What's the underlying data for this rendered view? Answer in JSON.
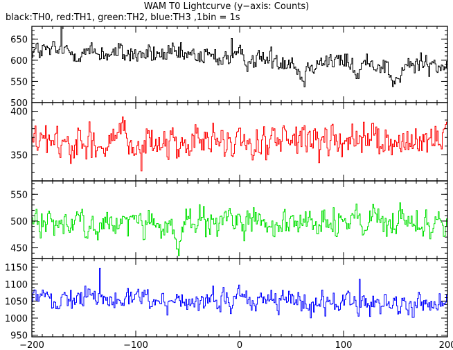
{
  "title": "WAM T0 Lightcurve (y−axis: Counts)",
  "subtitle": "black:TH0, red:TH1, green:TH2, blue:TH3 ,1bin = 1s",
  "chart_data": [
    {
      "type": "line",
      "series": [
        {
          "name": "TH0",
          "color": "#000000"
        }
      ],
      "x_range": [
        -200,
        200
      ],
      "ylim": [
        500,
        680
      ],
      "y_ticks": [
        500,
        550,
        600,
        650
      ],
      "y_tick_labels": [
        "500",
        "550",
        "600",
        "650"
      ],
      "mean": 605,
      "noise": 22,
      "trend": -0.09,
      "dips": [
        {
          "x": 60,
          "depth": 40,
          "width": 4
        },
        {
          "x": 150,
          "depth": 45,
          "width": 5
        },
        {
          "x": 113,
          "depth": 30,
          "width": 3
        }
      ],
      "spikes": [
        {
          "x": -172,
          "height": 55
        },
        {
          "x": -8,
          "height": 50
        }
      ]
    },
    {
      "type": "line",
      "series": [
        {
          "name": "TH1",
          "color": "#ff0000"
        }
      ],
      "x_range": [
        -200,
        200
      ],
      "ylim": [
        320,
        410
      ],
      "y_ticks": [
        350,
        400
      ],
      "y_tick_labels": [
        "350",
        "400"
      ],
      "mean": 364,
      "noise": 17,
      "trend": 0,
      "dips": [],
      "spikes": []
    },
    {
      "type": "line",
      "series": [
        {
          "name": "TH2",
          "color": "#00e000"
        }
      ],
      "x_range": [
        -200,
        200
      ],
      "ylim": [
        430,
        575
      ],
      "y_ticks": [
        450,
        500,
        550
      ],
      "y_tick_labels": [
        "450",
        "500",
        "550"
      ],
      "mean": 496,
      "noise": 24,
      "trend": 0,
      "dips": [
        {
          "x": -60,
          "depth": 45,
          "width": 3
        }
      ],
      "spikes": []
    },
    {
      "type": "line",
      "series": [
        {
          "name": "TH3",
          "color": "#0000ff"
        }
      ],
      "x_range": [
        -200,
        200
      ],
      "ylim": [
        945,
        1175
      ],
      "y_ticks": [
        950,
        1000,
        1050,
        1100,
        1150
      ],
      "y_tick_labels": [
        "950",
        "1000",
        "1050",
        "1100",
        "1150"
      ],
      "mean": 1050,
      "noise": 30,
      "trend": -0.05,
      "dips": [],
      "spikes": [
        {
          "x": -135,
          "height": 90
        },
        {
          "x": 115,
          "height": 95
        }
      ]
    }
  ],
  "x_ticks": [
    -200,
    -100,
    0,
    100,
    200
  ],
  "x_tick_labels": [
    "−200",
    "−100",
    "0",
    "100",
    "200"
  ]
}
